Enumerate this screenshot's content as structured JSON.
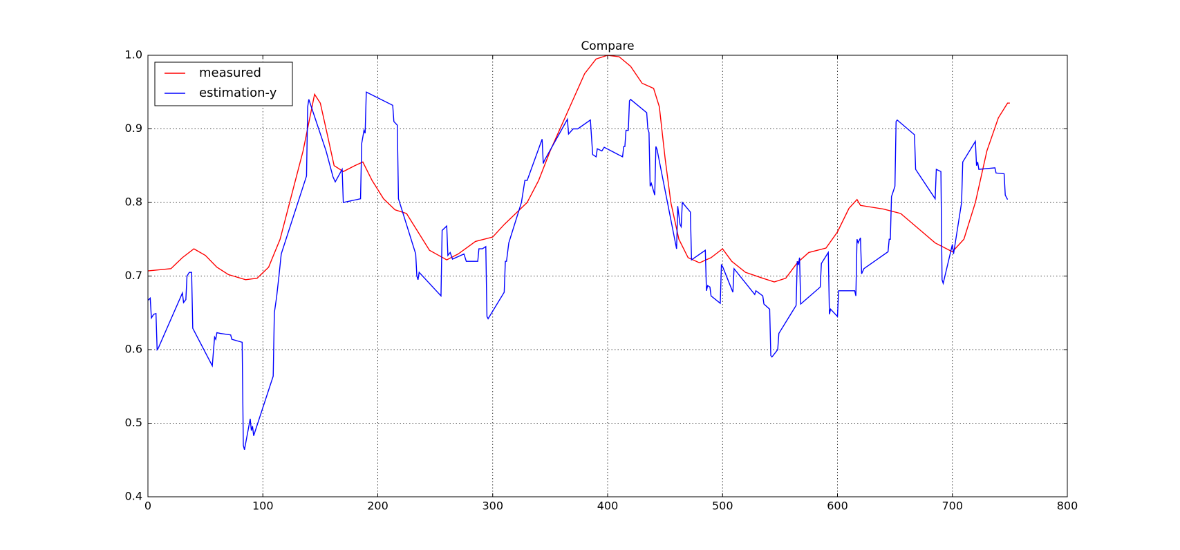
{
  "chart_data": {
    "type": "line",
    "title": "Compare",
    "xlim": [
      0,
      800
    ],
    "xticks": [
      0,
      100,
      200,
      300,
      400,
      500,
      600,
      700,
      800
    ],
    "ylim": [
      0.4,
      1.0
    ],
    "yticks": [
      0.4,
      0.5,
      0.6,
      0.7,
      0.8,
      0.9,
      {
        "value": 1.0,
        "label": "1.0"
      }
    ],
    "grid": true,
    "legend": "upper left",
    "series": [
      {
        "name": "measured",
        "color": "#ff0000",
        "x": [
          0,
          20,
          30,
          40,
          50,
          60,
          70,
          85,
          95,
          105,
          115,
          125,
          135,
          145,
          150,
          155,
          162,
          170,
          180,
          187,
          195,
          205,
          215,
          225,
          235,
          245,
          260,
          270,
          285,
          300,
          310,
          320,
          330,
          340,
          350,
          360,
          370,
          380,
          390,
          400,
          410,
          420,
          430,
          440,
          445,
          450,
          455,
          462,
          470,
          480,
          490,
          500,
          508,
          520,
          535,
          545,
          555,
          565,
          575,
          590,
          600,
          610,
          617,
          620,
          640,
          655,
          670,
          685,
          700,
          710,
          720,
          730,
          740,
          748,
          750
        ],
        "values": [
          0.707,
          0.71,
          0.725,
          0.737,
          0.728,
          0.712,
          0.702,
          0.695,
          0.697,
          0.712,
          0.75,
          0.81,
          0.87,
          0.947,
          0.935,
          0.9,
          0.85,
          0.842,
          0.85,
          0.855,
          0.83,
          0.805,
          0.79,
          0.785,
          0.76,
          0.735,
          0.722,
          0.73,
          0.747,
          0.753,
          0.77,
          0.785,
          0.8,
          0.83,
          0.87,
          0.905,
          0.94,
          0.975,
          0.995,
          1.0,
          0.998,
          0.985,
          0.962,
          0.955,
          0.93,
          0.86,
          0.8,
          0.75,
          0.725,
          0.718,
          0.725,
          0.737,
          0.72,
          0.705,
          0.697,
          0.692,
          0.697,
          0.718,
          0.732,
          0.738,
          0.76,
          0.792,
          0.804,
          0.796,
          0.791,
          0.785,
          0.765,
          0.745,
          0.733,
          0.75,
          0.8,
          0.87,
          0.915,
          0.935,
          0.935
        ]
      },
      {
        "name": "estimation-y",
        "color": "#0000ff",
        "x": [
          0,
          2,
          3,
          5,
          7,
          8,
          9,
          30,
          31,
          33,
          34,
          36,
          38,
          39,
          56,
          58,
          59,
          60,
          63,
          72,
          73,
          82,
          83,
          84,
          89,
          90,
          91,
          92,
          109,
          110,
          112,
          114,
          116,
          138,
          139,
          140,
          155,
          161,
          163,
          169,
          170,
          185,
          186,
          188,
          189,
          190,
          213,
          214,
          217,
          218,
          233,
          234,
          235,
          236,
          255,
          256,
          260,
          261,
          263,
          265,
          275,
          277,
          287,
          288,
          291,
          294,
          295,
          296,
          310,
          311,
          312,
          314,
          325,
          328,
          330,
          343,
          344,
          345,
          365,
          366,
          370,
          374,
          385,
          387,
          390,
          391,
          395,
          397,
          413,
          414,
          415,
          416,
          418,
          419,
          420,
          434,
          435,
          436,
          437,
          438,
          441,
          442,
          443,
          460,
          461,
          463,
          464,
          465,
          472,
          473,
          485,
          486,
          487,
          489,
          490,
          498,
          499,
          500,
          509,
          510,
          528,
          529,
          535,
          536,
          541,
          542,
          543,
          548,
          549,
          564,
          565,
          566,
          567,
          568,
          585,
          586,
          592,
          593,
          594,
          600,
          601,
          615,
          616,
          617,
          618,
          620,
          621,
          623,
          644,
          645,
          646,
          647,
          650,
          651,
          652,
          667,
          668,
          685,
          686,
          690,
          691,
          692,
          700,
          701,
          708,
          709,
          720,
          721,
          722,
          723,
          737,
          738,
          745,
          746,
          748
        ],
        "values": [
          0.667,
          0.67,
          0.643,
          0.648,
          0.649,
          0.6,
          0.602,
          0.677,
          0.664,
          0.668,
          0.7,
          0.705,
          0.705,
          0.629,
          0.578,
          0.617,
          0.614,
          0.623,
          0.622,
          0.62,
          0.614,
          0.61,
          0.47,
          0.464,
          0.506,
          0.49,
          0.496,
          0.483,
          0.564,
          0.65,
          0.672,
          0.7,
          0.73,
          0.836,
          0.93,
          0.94,
          0.87,
          0.835,
          0.828,
          0.845,
          0.8,
          0.805,
          0.88,
          0.898,
          0.894,
          0.95,
          0.932,
          0.91,
          0.905,
          0.805,
          0.73,
          0.7,
          0.695,
          0.705,
          0.673,
          0.762,
          0.768,
          0.728,
          0.732,
          0.723,
          0.73,
          0.72,
          0.72,
          0.737,
          0.737,
          0.74,
          0.645,
          0.642,
          0.678,
          0.72,
          0.72,
          0.745,
          0.8,
          0.83,
          0.83,
          0.886,
          0.853,
          0.857,
          0.913,
          0.893,
          0.9,
          0.9,
          0.912,
          0.865,
          0.862,
          0.873,
          0.87,
          0.875,
          0.862,
          0.876,
          0.876,
          0.898,
          0.898,
          0.938,
          0.94,
          0.922,
          0.9,
          0.895,
          0.822,
          0.826,
          0.81,
          0.876,
          0.872,
          0.737,
          0.795,
          0.77,
          0.767,
          0.8,
          0.787,
          0.722,
          0.735,
          0.68,
          0.687,
          0.685,
          0.673,
          0.663,
          0.715,
          0.713,
          0.678,
          0.71,
          0.675,
          0.68,
          0.673,
          0.662,
          0.655,
          0.592,
          0.59,
          0.6,
          0.622,
          0.66,
          0.72,
          0.715,
          0.725,
          0.662,
          0.685,
          0.717,
          0.732,
          0.648,
          0.655,
          0.645,
          0.68,
          0.68,
          0.673,
          0.75,
          0.745,
          0.752,
          0.703,
          0.71,
          0.733,
          0.75,
          0.75,
          0.808,
          0.822,
          0.91,
          0.912,
          0.892,
          0.845,
          0.805,
          0.845,
          0.842,
          0.695,
          0.69,
          0.743,
          0.73,
          0.8,
          0.855,
          0.883,
          0.85,
          0.855,
          0.845,
          0.847,
          0.84,
          0.839,
          0.81,
          0.804
        ]
      }
    ]
  }
}
